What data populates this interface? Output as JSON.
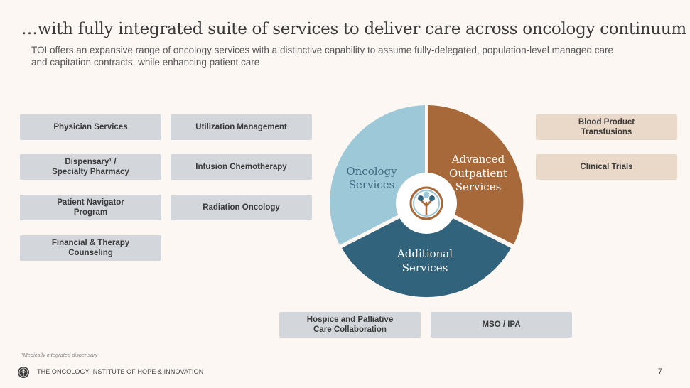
{
  "title": "…with fully integrated suite of services to deliver care across oncology continuum",
  "subtitle": "TOI offers an expansive range of oncology services with a distinctive capability to assume fully-delegated, population-level managed care and capitation contracts, while enhancing patient care",
  "left_col_1": [
    "Physician Services",
    "Dispensary¹ /\nSpecialty Pharmacy",
    "Patient Navigator\nProgram",
    "Financial & Therapy\nCounseling"
  ],
  "left_col_2": [
    "Utilization Management",
    "Infusion Chemotherapy",
    "Radiation Oncology"
  ],
  "right_col": [
    "Blood Product\nTransfusions",
    "Clinical Trials"
  ],
  "bottom_row": [
    "Hospice and Palliative\nCare Collaboration",
    "MSO / IPA"
  ],
  "pie": {
    "segments": [
      {
        "label_line1": "Oncology",
        "label_line2": "Services",
        "color": "#9dc8d8",
        "text_color": "#3e6b82"
      },
      {
        "label_line1": "Advanced",
        "label_line2": "Outpatient",
        "label_line3": "Services",
        "color": "#a8693a",
        "text_color": "#ffffff"
      },
      {
        "label_line1": "Additional",
        "label_line2": "Services",
        "color": "#31637c",
        "text_color": "#ffffff"
      }
    ],
    "center_icon": "tree-logo-icon"
  },
  "footnote": "¹Medically integrated dispensary",
  "footer": {
    "company": "THE ONCOLOGY INSTITUTE OF HOPE & INNOVATION",
    "page_number": "7",
    "logo_icon": "tree-logo-icon"
  }
}
